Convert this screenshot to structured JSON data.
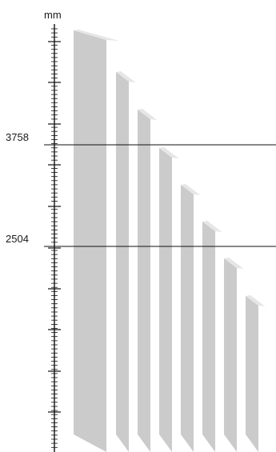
{
  "unit_label": "mm",
  "reference_lines": [
    {
      "label": "3758"
    },
    {
      "label": "2504"
    }
  ],
  "blocks": [
    {
      "id": "block-1"
    },
    {
      "id": "block-2"
    },
    {
      "id": "block-3"
    },
    {
      "id": "block-4"
    },
    {
      "id": "block-5"
    },
    {
      "id": "block-6"
    },
    {
      "id": "block-7"
    },
    {
      "id": "block-8"
    }
  ],
  "colors": {
    "block_face": "#cbcbcb",
    "block_side": "#b3b3b3",
    "block_top": "#e6e6e6",
    "line": "#111111"
  }
}
